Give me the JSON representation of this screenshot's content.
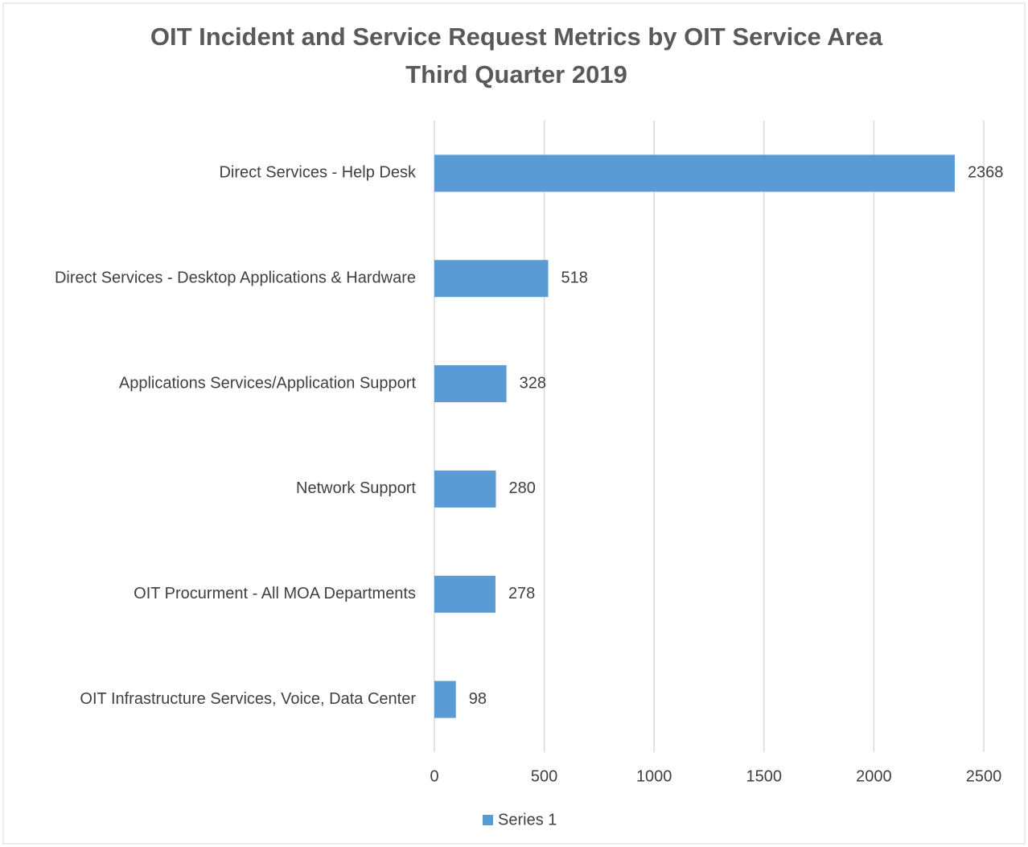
{
  "chart_data": {
    "type": "barh",
    "title": "OIT Incident and Service Request Metrics by OIT Service Area",
    "subtitle": "Third Quarter 2019",
    "categories": [
      "Direct Services - Help Desk",
      "Direct Services - Desktop Applications & Hardware",
      "Applications Services/Application Support",
      "Network Support",
      "OIT Procurment - All MOA Departments",
      "OIT Infrastructure Services, Voice, Data Center"
    ],
    "series": [
      {
        "name": "Series 1",
        "color": "#5b9bd5",
        "values": [
          2368,
          518,
          328,
          280,
          278,
          98
        ]
      }
    ],
    "xlim": [
      0,
      2500
    ],
    "xticks": [
      0,
      500,
      1000,
      1500,
      2000,
      2500
    ],
    "grid": true,
    "legend": "bottom"
  }
}
